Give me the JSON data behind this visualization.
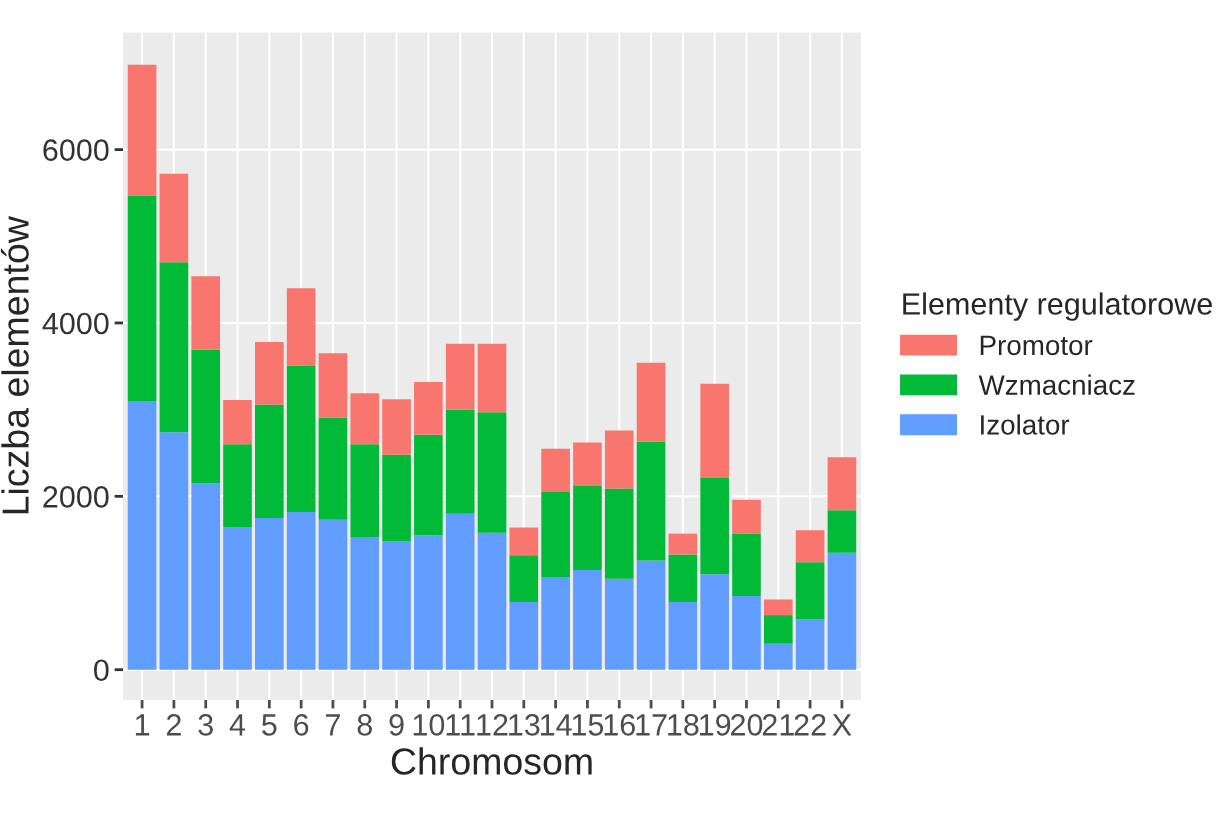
{
  "chart_data": {
    "type": "bar",
    "stacked": true,
    "xlabel": "Chromosom",
    "ylabel": "Liczba elementów",
    "legend_title": "Elementy regulatorowe",
    "categories": [
      "1",
      "2",
      "3",
      "4",
      "5",
      "6",
      "7",
      "8",
      "9",
      "10",
      "11",
      "12",
      "13",
      "14",
      "15",
      "16",
      "17",
      "18",
      "19",
      "20",
      "21",
      "22",
      "X"
    ],
    "series": [
      {
        "name": "Izolator",
        "color": "#619cff",
        "values": [
          3100,
          2740,
          2150,
          1640,
          1750,
          1820,
          1730,
          1530,
          1480,
          1550,
          1800,
          1580,
          780,
          1070,
          1150,
          1050,
          1260,
          780,
          1100,
          850,
          300,
          580,
          1350
        ]
      },
      {
        "name": "Wzmacniacz",
        "color": "#00ba38",
        "values": [
          2370,
          1960,
          1540,
          960,
          1310,
          1690,
          1180,
          1070,
          1000,
          1160,
          1200,
          1390,
          540,
          980,
          970,
          1040,
          1370,
          550,
          1110,
          720,
          330,
          660,
          490
        ]
      },
      {
        "name": "Promotor",
        "color": "#f8766d",
        "values": [
          1510,
          1020,
          850,
          510,
          720,
          890,
          740,
          590,
          640,
          610,
          760,
          790,
          320,
          500,
          500,
          670,
          910,
          240,
          1090,
          390,
          180,
          370,
          610
        ]
      }
    ],
    "ylim": [
      -350,
      7350
    ],
    "yticks": [
      0,
      2000,
      4000,
      6000
    ],
    "grid": true,
    "legend": "right"
  }
}
